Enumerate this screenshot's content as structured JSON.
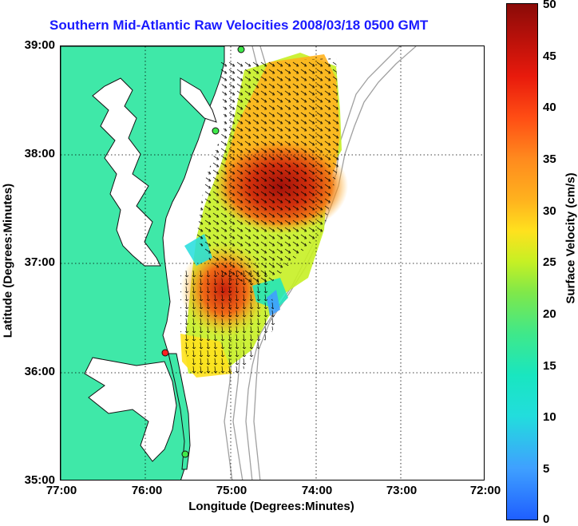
{
  "title": "Southern Mid-Atlantic Raw Velocities 2008/03/18 0500 GMT",
  "xaxis": {
    "label": "Longitude (Degrees:Minutes)",
    "ticks": [
      "77:00",
      "76:00",
      "75:00",
      "74:00",
      "73:00",
      "72:00"
    ]
  },
  "yaxis": {
    "label": "Latitude (Degrees:Minutes)",
    "ticks": [
      "39:00",
      "38:00",
      "37:00",
      "36:00",
      "35:00"
    ]
  },
  "colorbar": {
    "label": "Surface Velocity (cm/s)",
    "ticks": [
      "50",
      "45",
      "40",
      "35",
      "30",
      "25",
      "20",
      "15",
      "10",
      "5",
      "0"
    ],
    "range": [
      0,
      50
    ]
  },
  "colors": {
    "land": "#3fe8a8",
    "coast": "#111111",
    "grid": "#000000",
    "bathymetry": "#a0a0a0",
    "title": "#1a1aff"
  }
}
